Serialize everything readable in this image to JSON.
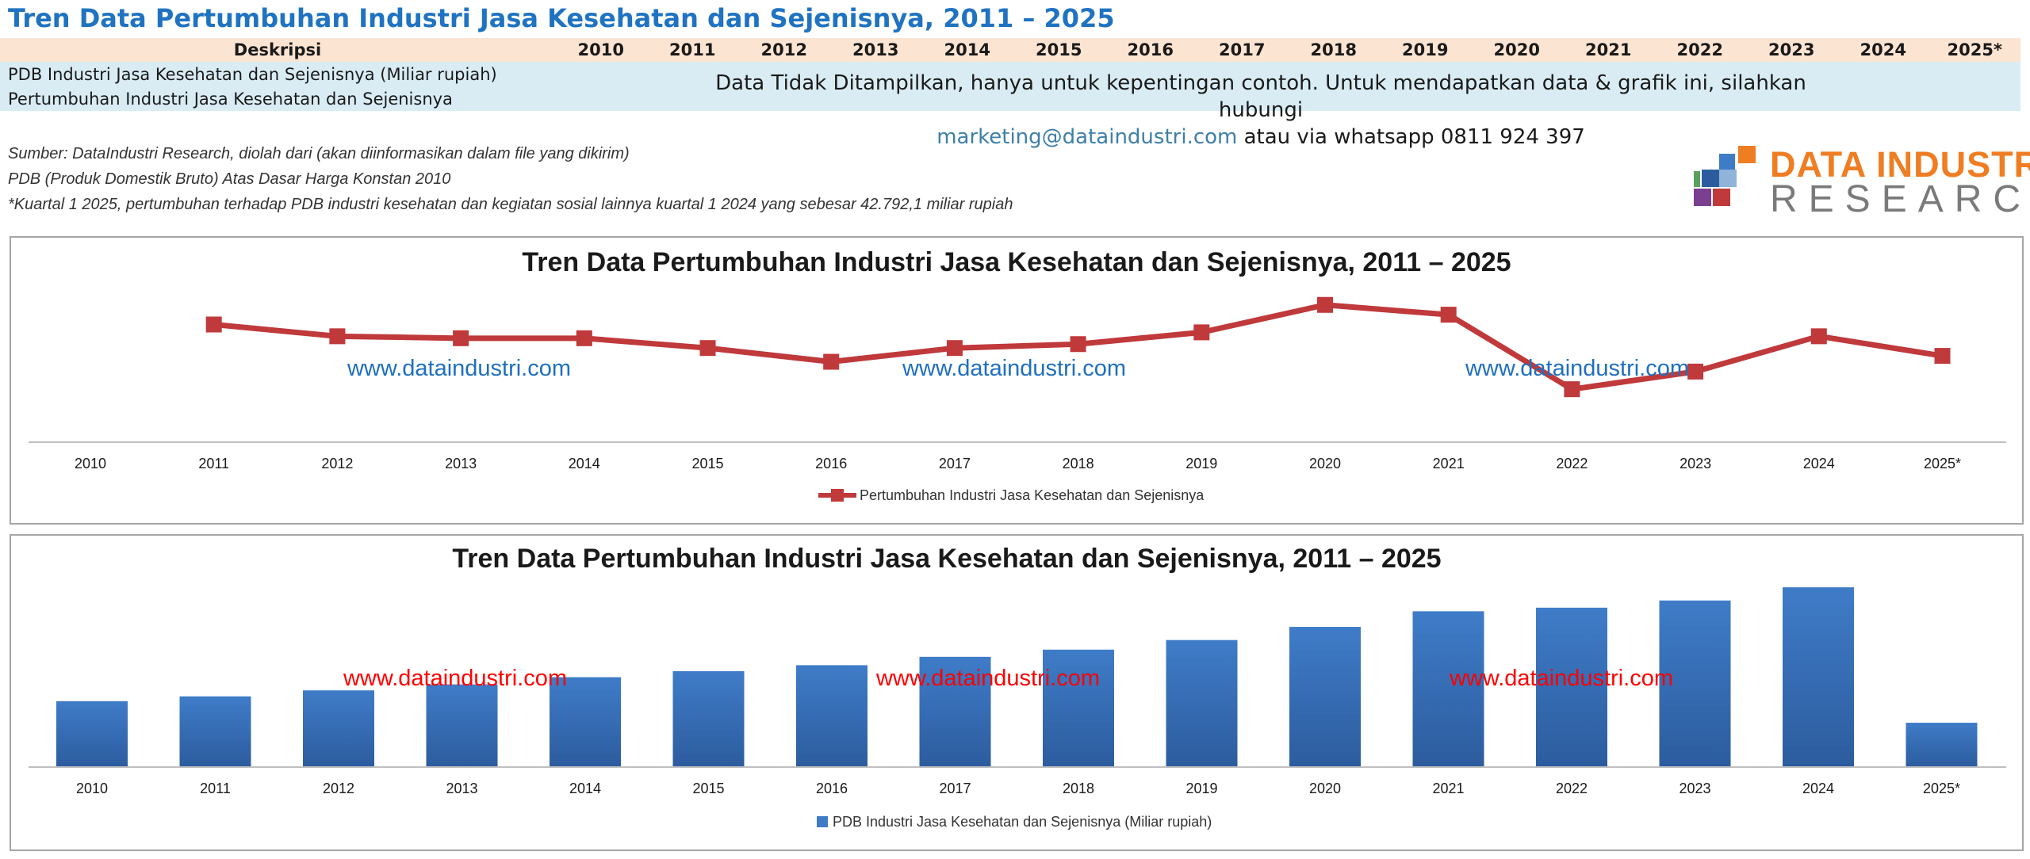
{
  "page_title": "Tren Data Pertumbuhan Industri Jasa Kesehatan dan Sejenisnya, 2011 – 2025",
  "table": {
    "header_label": "Deskripsi",
    "years": [
      "2010",
      "2011",
      "2012",
      "2013",
      "2014",
      "2015",
      "2016",
      "2017",
      "2018",
      "2019",
      "2020",
      "2021",
      "2022",
      "2023",
      "2024",
      "2025*"
    ],
    "rows": [
      "PDB Industri Jasa Kesehatan dan Sejenisnya (Miliar rupiah)",
      "Pertumbuhan Industri Jasa Kesehatan dan Sejenisnya"
    ]
  },
  "notice": {
    "line1": "Data Tidak Ditampilkan, hanya untuk kepentingan contoh. Untuk mendapatkan data & grafik  ini, silahkan hubungi",
    "email": "marketing@dataindustri.com",
    "line2_rest": " atau via whatsapp 0811 924 397"
  },
  "notes": [
    "Sumber: DataIndustri Research, diolah dari (akan diinformasikan dalam file yang dikirim)",
    "PDB (Produk Domestik Bruto) Atas Dasar Harga Konstan 2010",
    "*Kuartal 1 2025, pertumbuhan terhadap PDB industri kesehatan dan kegiatan sosial lainnya kuartal 1 2024 yang sebesar 42.792,1 miliar rupiah"
  ],
  "logo": {
    "line1": "DATA INDUSTRI",
    "line2": "RESEARCH"
  },
  "watermark": "www.dataindustri.com",
  "colors": {
    "line": "#c0393b",
    "bar": "#3f7cc8",
    "bar_dark": "#2c5c9e",
    "wm_line": "#1f6fc0",
    "wm_bar": "#ff0000",
    "title_blue": "#1f73c1",
    "logo_orange": "#ef7d22"
  },
  "chart_data": [
    {
      "type": "line",
      "title": "Tren Data Pertumbuhan Industri Jasa Kesehatan dan Sejenisnya, 2011 – 2025",
      "categories": [
        "2010",
        "2011",
        "2012",
        "2013",
        "2014",
        "2015",
        "2016",
        "2017",
        "2018",
        "2019",
        "2020",
        "2021",
        "2022",
        "2023",
        "2024",
        "2025*"
      ],
      "series": [
        {
          "name": "Pertumbuhan Industri Jasa Kesehatan dan Sejenisnya",
          "values": [
            null,
            6.0,
            5.4,
            5.3,
            5.3,
            4.8,
            4.1,
            4.8,
            5.0,
            5.6,
            7.0,
            6.5,
            2.7,
            3.6,
            5.4,
            4.4
          ]
        }
      ],
      "ylim": [
        0,
        8
      ],
      "legend": "bottom",
      "grid": false
    },
    {
      "type": "bar",
      "title": "Tren Data Pertumbuhan Industri Jasa Kesehatan dan Sejenisnya, 2011 – 2025",
      "categories": [
        "2010",
        "2011",
        "2012",
        "2013",
        "2014",
        "2015",
        "2016",
        "2017",
        "2018",
        "2019",
        "2020",
        "2021",
        "2022",
        "2023",
        "2024",
        "2025*"
      ],
      "series": [
        {
          "name": "PDB Industri Jasa Kesehatan dan Sejenisnya (Miliar rupiah)",
          "values": [
            55,
            59,
            64,
            69,
            75,
            80,
            85,
            92,
            98,
            106,
            117,
            130,
            133,
            139,
            150,
            37
          ]
        }
      ],
      "ylim": [
        0,
        160
      ],
      "legend": "bottom",
      "grid": false
    }
  ]
}
